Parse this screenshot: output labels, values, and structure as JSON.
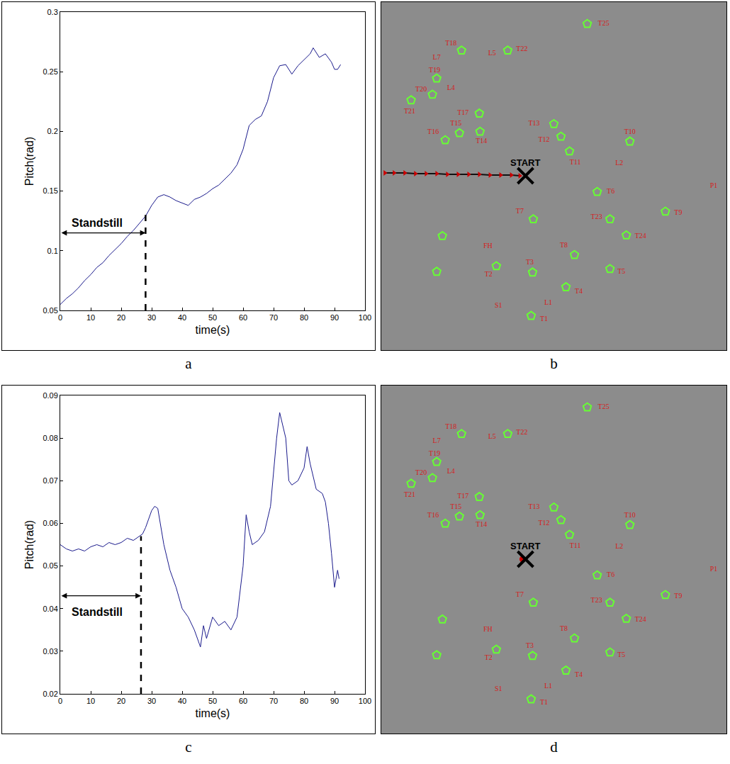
{
  "chart_data": [
    {
      "panel_label": "a",
      "type": "line",
      "x_label": "time(s)",
      "y_label": "Pitch(rad)",
      "grid": false,
      "xlim": [
        0,
        100
      ],
      "xticks": [
        0,
        10,
        20,
        30,
        40,
        50,
        60,
        70,
        80,
        90,
        100
      ],
      "ylim": [
        0.05,
        0.3
      ],
      "yticks": [
        0.05,
        0.1,
        0.15,
        0.2,
        0.25,
        0.3
      ],
      "series": [
        {
          "color": "#1a1a8c",
          "x": [
            0,
            2,
            4,
            6,
            8,
            10,
            12,
            14,
            16,
            18,
            20,
            22,
            24,
            26,
            28,
            30,
            32,
            34,
            36,
            38,
            40,
            42,
            44,
            46,
            48,
            50,
            52,
            54,
            56,
            58,
            60,
            62,
            64,
            66,
            68,
            70,
            72,
            74,
            76,
            78,
            80,
            82,
            83,
            85,
            87,
            89,
            90,
            91,
            92
          ],
          "values": [
            0.055,
            0.06,
            0.064,
            0.069,
            0.075,
            0.08,
            0.086,
            0.09,
            0.096,
            0.101,
            0.106,
            0.112,
            0.117,
            0.123,
            0.129,
            0.138,
            0.145,
            0.147,
            0.145,
            0.142,
            0.14,
            0.138,
            0.143,
            0.145,
            0.148,
            0.152,
            0.155,
            0.16,
            0.165,
            0.172,
            0.185,
            0.205,
            0.21,
            0.213,
            0.225,
            0.245,
            0.255,
            0.256,
            0.248,
            0.255,
            0.26,
            0.265,
            0.27,
            0.262,
            0.265,
            0.258,
            0.252,
            0.252,
            0.256
          ]
        }
      ],
      "annotations": [
        {
          "text": "Standstill",
          "x_start": 0,
          "x_end": 28,
          "y": 0.115,
          "text_y": 0.117,
          "line_top": 0.13
        }
      ]
    },
    {
      "panel_label": "b",
      "type": "map",
      "tick_labels": false,
      "xlim": [
        0,
        480
      ],
      "ylim": [
        495,
        0
      ],
      "landmarks": {
        "color": "#66ff33",
        "marker": "pentagon-open",
        "x": [
          287,
          110,
          175,
          75,
          69,
          39,
          135,
          107,
          87,
          136,
          240,
          250,
          262,
          347,
          301,
          397,
          319,
          211,
          342,
          83,
          269,
          159,
          210,
          319,
          75,
          257,
          208
        ],
        "y": [
          30,
          68,
          68,
          108,
          131,
          139,
          158,
          186,
          196,
          184,
          173,
          191,
          212,
          198,
          270,
          298,
          309,
          309,
          332,
          333,
          360,
          376,
          385,
          380,
          384,
          406,
          447
        ]
      },
      "labels": {
        "color": "#d42020",
        "text": [
          "T25",
          "T18",
          "L5",
          "T22",
          "L7",
          "T19",
          "T20",
          "L4",
          "T21",
          "T17",
          "T15",
          "T16",
          "T14",
          "T13",
          "T12",
          "T11",
          "T10",
          "L2",
          "P1",
          "T6",
          "T9",
          "T23",
          "T7",
          "T24",
          "T8",
          "FH",
          "T2",
          "T3",
          "T5",
          "T4",
          "S1",
          "L1",
          "T1"
        ],
        "x": [
          310,
          95,
          153,
          195,
          75,
          72,
          53,
          95,
          37,
          112,
          102,
          70,
          138,
          212,
          226,
          270,
          347,
          332,
          465,
          320,
          415,
          300,
          192,
          362,
          254,
          147,
          148,
          206,
          335,
          275,
          162,
          232,
          226
        ],
        "y": [
          30,
          58,
          72,
          66,
          78,
          97,
          124,
          122,
          155,
          157,
          173,
          185,
          198,
          173,
          196,
          228,
          185,
          229,
          262,
          270,
          300,
          306,
          298,
          334,
          347,
          348,
          388,
          371,
          384,
          413,
          433,
          429,
          452
        ]
      },
      "start": {
        "text": "START",
        "x": 200,
        "y": 247,
        "text_y": 228,
        "color": "#000000"
      },
      "trajectory": {
        "color": "#cc0000",
        "marker": "triangle-right",
        "x": [
          2,
          15,
          30,
          45,
          60,
          75,
          90,
          105,
          120,
          135,
          150,
          165,
          180,
          192
        ],
        "y": [
          243,
          243,
          243,
          244,
          244,
          244,
          245,
          245,
          245,
          245,
          246,
          246,
          246,
          247
        ]
      }
    },
    {
      "panel_label": "c",
      "type": "line",
      "x_label": "time(s)",
      "y_label": "Pitch(rad)",
      "grid": false,
      "xlim": [
        0,
        100
      ],
      "xticks": [
        0,
        10,
        20,
        30,
        40,
        50,
        60,
        70,
        80,
        90,
        100
      ],
      "ylim": [
        0.02,
        0.09
      ],
      "yticks": [
        0.02,
        0.03,
        0.04,
        0.05,
        0.06,
        0.07,
        0.08,
        0.09
      ],
      "series": [
        {
          "color": "#1a1a8c",
          "x": [
            0,
            2,
            4,
            6,
            8,
            10,
            12,
            14,
            16,
            18,
            20,
            22,
            24,
            26,
            27,
            28,
            30,
            31,
            32,
            34,
            36,
            38,
            40,
            42,
            44,
            46,
            47,
            48,
            50,
            52,
            54,
            56,
            58,
            60,
            61,
            62,
            63,
            65,
            67,
            69,
            70,
            71,
            72,
            73,
            74,
            75,
            76,
            78,
            80,
            81,
            82,
            84,
            86,
            87,
            88,
            89,
            90,
            91,
            91.5
          ],
          "values": [
            0.055,
            0.054,
            0.0535,
            0.054,
            0.0535,
            0.0545,
            0.055,
            0.0545,
            0.0555,
            0.055,
            0.0555,
            0.0565,
            0.056,
            0.057,
            0.0575,
            0.059,
            0.063,
            0.064,
            0.0635,
            0.055,
            0.049,
            0.045,
            0.04,
            0.038,
            0.035,
            0.031,
            0.036,
            0.033,
            0.038,
            0.036,
            0.037,
            0.035,
            0.038,
            0.05,
            0.062,
            0.058,
            0.055,
            0.056,
            0.058,
            0.064,
            0.072,
            0.08,
            0.086,
            0.083,
            0.08,
            0.07,
            0.069,
            0.07,
            0.073,
            0.078,
            0.074,
            0.068,
            0.067,
            0.065,
            0.06,
            0.053,
            0.045,
            0.049,
            0.047
          ]
        }
      ],
      "annotations": [
        {
          "text": "Standstill",
          "x_start": 0,
          "x_end": 26.5,
          "y": 0.043,
          "text_y": 0.041,
          "line_top": 0.057
        }
      ]
    },
    {
      "panel_label": "d",
      "type": "map",
      "tick_labels": false,
      "xlim": [
        0,
        480
      ],
      "ylim": [
        495,
        0
      ],
      "landmarks": {
        "color": "#66ff33",
        "marker": "pentagon-open",
        "x": [
          287,
          110,
          175,
          75,
          69,
          39,
          135,
          107,
          87,
          136,
          240,
          250,
          262,
          347,
          301,
          397,
          319,
          211,
          342,
          83,
          269,
          159,
          210,
          319,
          75,
          257,
          208
        ],
        "y": [
          30,
          68,
          68,
          108,
          131,
          139,
          158,
          186,
          196,
          184,
          173,
          191,
          212,
          198,
          270,
          298,
          309,
          309,
          332,
          333,
          360,
          376,
          385,
          380,
          384,
          406,
          447
        ]
      },
      "labels": {
        "color": "#d42020",
        "text": [
          "T25",
          "T18",
          "L5",
          "T22",
          "L7",
          "T19",
          "T20",
          "L4",
          "T21",
          "T17",
          "T15",
          "T16",
          "T14",
          "T13",
          "T12",
          "T11",
          "T10",
          "L2",
          "P1",
          "T6",
          "T9",
          "T23",
          "T7",
          "T24",
          "T8",
          "FH",
          "T2",
          "T3",
          "T5",
          "T4",
          "S1",
          "L1",
          "T1"
        ],
        "x": [
          310,
          95,
          153,
          195,
          75,
          72,
          53,
          95,
          37,
          112,
          102,
          70,
          138,
          212,
          226,
          270,
          347,
          332,
          465,
          320,
          415,
          300,
          192,
          362,
          254,
          147,
          148,
          206,
          335,
          275,
          162,
          232,
          226
        ],
        "y": [
          30,
          58,
          72,
          66,
          78,
          97,
          124,
          122,
          155,
          157,
          173,
          185,
          198,
          173,
          196,
          228,
          185,
          229,
          262,
          270,
          300,
          306,
          298,
          334,
          347,
          348,
          388,
          371,
          384,
          413,
          433,
          429,
          452
        ]
      },
      "start": {
        "text": "START",
        "x": 200,
        "y": 247,
        "text_y": 228,
        "color": "#000000"
      },
      "trajectory": {
        "color": "#cc0000",
        "marker": "circle",
        "x": [
          196
        ],
        "y": [
          247
        ]
      }
    }
  ]
}
